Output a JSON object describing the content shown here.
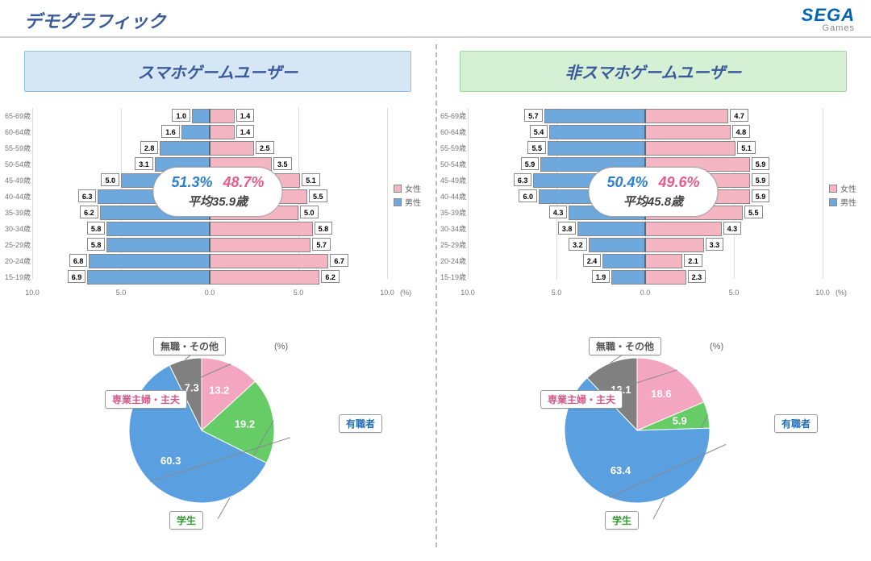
{
  "page_title": "デモグラフィック",
  "logo": {
    "main": "SEGA",
    "sub": "Games"
  },
  "colors": {
    "male": "#6fa8dc",
    "female": "#f4b6c2",
    "bar_border": "#888888",
    "grid": "#dddddd",
    "title_text": "#3a5a9a",
    "panel_blue_bg": "#d5e6f5",
    "panel_green_bg": "#d5f0d5",
    "pie_other": "#808080",
    "pie_housewife": "#f4a6c0",
    "pie_student": "#66cc66",
    "pie_employed": "#5aa0e0"
  },
  "legend": {
    "female": "女性",
    "male": "男性"
  },
  "pyramid_axis": {
    "ticks": [
      -10,
      -5,
      0,
      5,
      10
    ],
    "tick_labels": [
      "10.0",
      "5.0",
      "0.0",
      "5.0",
      "10.0"
    ],
    "unit": "(%)",
    "scale": 10.0,
    "age_labels": [
      "65-69歳",
      "60-64歳",
      "55-59歳",
      "50-54歳",
      "45-49歳",
      "40-44歳",
      "35-39歳",
      "30-34歳",
      "25-29歳",
      "20-24歳",
      "15-19歳"
    ]
  },
  "pie_common": {
    "unit": "(%)",
    "labels": {
      "other": "無職・その他",
      "housewife": "専業主婦・主夫",
      "student": "学生",
      "employed": "有職者"
    }
  },
  "left": {
    "title": "スマホゲームユーザー",
    "male_pct": "51.3%",
    "female_pct": "48.7%",
    "avg": "平均35.9歳",
    "pyramid": [
      {
        "m": 1.0,
        "f": 1.4
      },
      {
        "m": 1.6,
        "f": 1.4
      },
      {
        "m": 2.8,
        "f": 2.5
      },
      {
        "m": 3.1,
        "f": 3.5
      },
      {
        "m": 5.0,
        "f": 5.1
      },
      {
        "m": 6.3,
        "f": 5.5
      },
      {
        "m": 6.2,
        "f": 5.0
      },
      {
        "m": 5.8,
        "f": 5.8
      },
      {
        "m": 5.8,
        "f": 5.7
      },
      {
        "m": 6.8,
        "f": 6.7
      },
      {
        "m": 6.9,
        "f": 6.2
      }
    ],
    "pie": {
      "other": 7.3,
      "housewife": 13.2,
      "student": 19.2,
      "employed": 60.3
    }
  },
  "right": {
    "title": "非スマホゲームユーザー",
    "male_pct": "50.4%",
    "female_pct": "49.6%",
    "avg": "平均45.8歳",
    "pyramid": [
      {
        "m": 5.7,
        "f": 4.7
      },
      {
        "m": 5.4,
        "f": 4.8
      },
      {
        "m": 5.5,
        "f": 5.1
      },
      {
        "m": 5.9,
        "f": 5.9
      },
      {
        "m": 6.3,
        "f": 5.9
      },
      {
        "m": 6.0,
        "f": 5.9
      },
      {
        "m": 4.3,
        "f": 5.5
      },
      {
        "m": 3.8,
        "f": 4.3
      },
      {
        "m": 3.2,
        "f": 3.3
      },
      {
        "m": 2.4,
        "f": 2.1
      },
      {
        "m": 1.9,
        "f": 2.3
      }
    ],
    "pie": {
      "other": 12.1,
      "housewife": 18.6,
      "student": 5.9,
      "employed": 63.4
    }
  }
}
